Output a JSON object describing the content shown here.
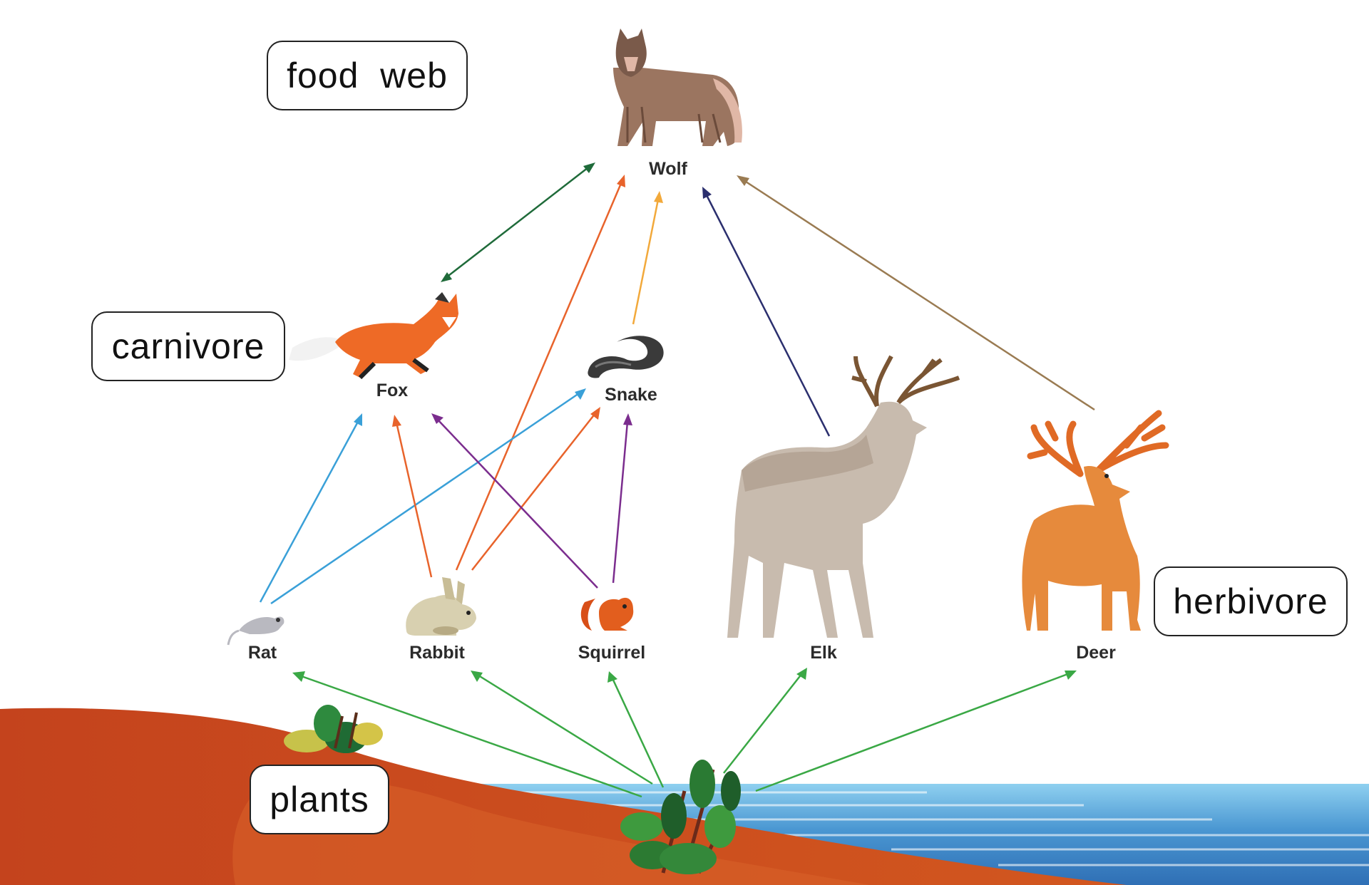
{
  "labels": {
    "food_web": "food  web",
    "carnivore": "carnivore",
    "herbivore": "herbivore",
    "plants": "plants"
  },
  "animals": {
    "wolf": "Wolf",
    "fox": "Fox",
    "snake": "Snake",
    "rat": "Rat",
    "rabbit": "Rabbit",
    "squirrel": "Squirrel",
    "elk": "Elk",
    "deer": "Deer"
  },
  "colors": {
    "plant_arrows": "#3aa845",
    "ground": "#c9471f",
    "water": "#3f86c6",
    "fox_wolf": "#1f6b3a",
    "rabbit_wolf": "#e8632b",
    "snake_wolf": "#f2a93b",
    "elk_wolf": "#2b2f6e",
    "deer_wolf": "#9a7b52",
    "rat_links": "#3aa0d8",
    "rabbit_links": "#e8632b",
    "squirrel_links": "#7b2d8e"
  }
}
